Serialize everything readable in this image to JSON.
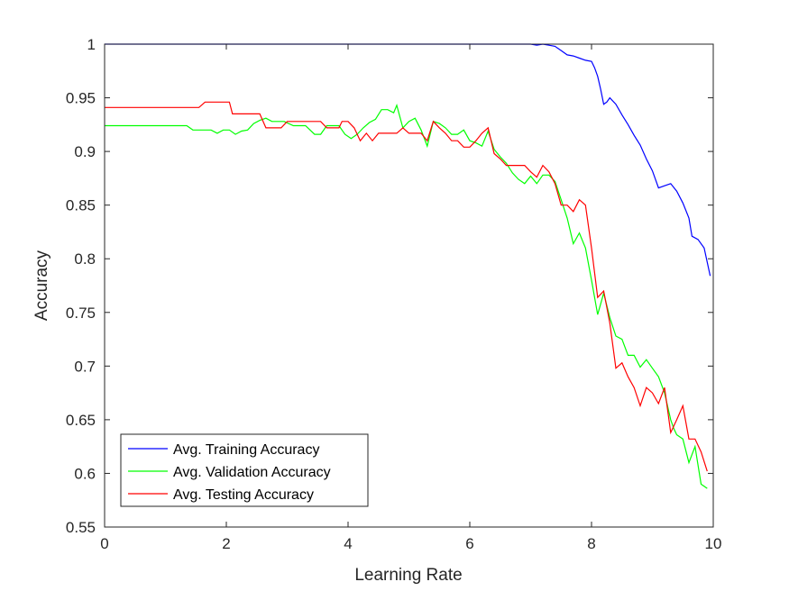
{
  "chart_data": {
    "type": "line",
    "xlabel": "Learning Rate",
    "ylabel": "Accuracy",
    "xlim": [
      0,
      10
    ],
    "ylim": [
      0.55,
      1.0
    ],
    "xticks": [
      "0",
      "2",
      "4",
      "6",
      "8",
      "10"
    ],
    "yticks": [
      "0.55",
      "0.6",
      "0.65",
      "0.7",
      "0.75",
      "0.8",
      "0.85",
      "0.9",
      "0.95",
      "1"
    ],
    "grid": false,
    "legend_position": "bottom-left",
    "series": [
      {
        "name": "Avg. Training Accuracy",
        "color": "#0000ff",
        "points": [
          [
            0,
            1
          ],
          [
            1,
            1
          ],
          [
            2,
            1
          ],
          [
            3,
            1
          ],
          [
            4,
            1
          ],
          [
            5,
            1
          ],
          [
            6,
            1
          ],
          [
            6.5,
            1
          ],
          [
            7,
            1
          ],
          [
            7.1,
            0.999
          ],
          [
            7.2,
            1
          ],
          [
            7.3,
            0.999
          ],
          [
            7.4,
            0.998
          ],
          [
            7.5,
            0.994
          ],
          [
            7.6,
            0.99
          ],
          [
            7.7,
            0.989
          ],
          [
            7.8,
            0.987
          ],
          [
            7.9,
            0.985
          ],
          [
            8.0,
            0.984
          ],
          [
            8.05,
            0.978
          ],
          [
            8.1,
            0.97
          ],
          [
            8.15,
            0.958
          ],
          [
            8.2,
            0.944
          ],
          [
            8.25,
            0.946
          ],
          [
            8.3,
            0.95
          ],
          [
            8.4,
            0.944
          ],
          [
            8.5,
            0.934
          ],
          [
            8.6,
            0.925
          ],
          [
            8.7,
            0.915
          ],
          [
            8.8,
            0.906
          ],
          [
            8.9,
            0.893
          ],
          [
            9.0,
            0.882
          ],
          [
            9.1,
            0.866
          ],
          [
            9.2,
            0.868
          ],
          [
            9.3,
            0.87
          ],
          [
            9.4,
            0.863
          ],
          [
            9.5,
            0.852
          ],
          [
            9.6,
            0.838
          ],
          [
            9.65,
            0.821
          ],
          [
            9.75,
            0.818
          ],
          [
            9.85,
            0.81
          ],
          [
            9.95,
            0.784
          ]
        ]
      },
      {
        "name": "Avg. Validation Accuracy",
        "color": "#00ff00",
        "points": [
          [
            0,
            0.924
          ],
          [
            0.5,
            0.924
          ],
          [
            1.0,
            0.924
          ],
          [
            1.35,
            0.924
          ],
          [
            1.45,
            0.92
          ],
          [
            1.6,
            0.92
          ],
          [
            1.75,
            0.92
          ],
          [
            1.85,
            0.917
          ],
          [
            1.95,
            0.92
          ],
          [
            2.05,
            0.92
          ],
          [
            2.15,
            0.916
          ],
          [
            2.25,
            0.919
          ],
          [
            2.35,
            0.92
          ],
          [
            2.45,
            0.926
          ],
          [
            2.55,
            0.929
          ],
          [
            2.65,
            0.931
          ],
          [
            2.75,
            0.928
          ],
          [
            2.85,
            0.928
          ],
          [
            2.95,
            0.928
          ],
          [
            3.1,
            0.924
          ],
          [
            3.2,
            0.924
          ],
          [
            3.3,
            0.924
          ],
          [
            3.45,
            0.916
          ],
          [
            3.55,
            0.916
          ],
          [
            3.65,
            0.924
          ],
          [
            3.75,
            0.924
          ],
          [
            3.85,
            0.924
          ],
          [
            3.95,
            0.916
          ],
          [
            4.05,
            0.912
          ],
          [
            4.15,
            0.916
          ],
          [
            4.25,
            0.922
          ],
          [
            4.35,
            0.927
          ],
          [
            4.45,
            0.93
          ],
          [
            4.55,
            0.939
          ],
          [
            4.65,
            0.939
          ],
          [
            4.75,
            0.936
          ],
          [
            4.8,
            0.943
          ],
          [
            4.9,
            0.922
          ],
          [
            5.0,
            0.928
          ],
          [
            5.1,
            0.931
          ],
          [
            5.2,
            0.92
          ],
          [
            5.3,
            0.905
          ],
          [
            5.4,
            0.928
          ],
          [
            5.5,
            0.926
          ],
          [
            5.6,
            0.922
          ],
          [
            5.7,
            0.916
          ],
          [
            5.8,
            0.916
          ],
          [
            5.9,
            0.92
          ],
          [
            6.0,
            0.91
          ],
          [
            6.1,
            0.908
          ],
          [
            6.2,
            0.905
          ],
          [
            6.3,
            0.919
          ],
          [
            6.4,
            0.902
          ],
          [
            6.5,
            0.895
          ],
          [
            6.6,
            0.889
          ],
          [
            6.7,
            0.88
          ],
          [
            6.8,
            0.874
          ],
          [
            6.9,
            0.87
          ],
          [
            7.0,
            0.877
          ],
          [
            7.1,
            0.87
          ],
          [
            7.2,
            0.878
          ],
          [
            7.3,
            0.878
          ],
          [
            7.4,
            0.872
          ],
          [
            7.5,
            0.855
          ],
          [
            7.6,
            0.838
          ],
          [
            7.7,
            0.814
          ],
          [
            7.8,
            0.824
          ],
          [
            7.9,
            0.81
          ],
          [
            8.0,
            0.78
          ],
          [
            8.1,
            0.748
          ],
          [
            8.2,
            0.768
          ],
          [
            8.3,
            0.745
          ],
          [
            8.4,
            0.728
          ],
          [
            8.5,
            0.725
          ],
          [
            8.6,
            0.71
          ],
          [
            8.7,
            0.71
          ],
          [
            8.8,
            0.699
          ],
          [
            8.9,
            0.706
          ],
          [
            9.0,
            0.698
          ],
          [
            9.1,
            0.69
          ],
          [
            9.2,
            0.675
          ],
          [
            9.3,
            0.65
          ],
          [
            9.35,
            0.642
          ],
          [
            9.4,
            0.636
          ],
          [
            9.5,
            0.632
          ],
          [
            9.6,
            0.61
          ],
          [
            9.7,
            0.625
          ],
          [
            9.8,
            0.59
          ],
          [
            9.9,
            0.586
          ]
        ]
      },
      {
        "name": "Avg. Testing Accuracy",
        "color": "#ff0000",
        "points": [
          [
            0,
            0.941
          ],
          [
            0.5,
            0.941
          ],
          [
            1.0,
            0.941
          ],
          [
            1.4,
            0.941
          ],
          [
            1.55,
            0.941
          ],
          [
            1.65,
            0.946
          ],
          [
            1.8,
            0.946
          ],
          [
            1.95,
            0.946
          ],
          [
            2.05,
            0.946
          ],
          [
            2.1,
            0.935
          ],
          [
            2.3,
            0.935
          ],
          [
            2.55,
            0.935
          ],
          [
            2.65,
            0.922
          ],
          [
            2.75,
            0.922
          ],
          [
            2.9,
            0.922
          ],
          [
            3.0,
            0.928
          ],
          [
            3.2,
            0.928
          ],
          [
            3.45,
            0.928
          ],
          [
            3.55,
            0.928
          ],
          [
            3.65,
            0.922
          ],
          [
            3.75,
            0.922
          ],
          [
            3.85,
            0.922
          ],
          [
            3.9,
            0.928
          ],
          [
            4.0,
            0.928
          ],
          [
            4.1,
            0.922
          ],
          [
            4.2,
            0.91
          ],
          [
            4.3,
            0.917
          ],
          [
            4.4,
            0.91
          ],
          [
            4.5,
            0.917
          ],
          [
            4.6,
            0.917
          ],
          [
            4.7,
            0.917
          ],
          [
            4.8,
            0.917
          ],
          [
            4.9,
            0.922
          ],
          [
            5.0,
            0.917
          ],
          [
            5.1,
            0.917
          ],
          [
            5.2,
            0.917
          ],
          [
            5.3,
            0.91
          ],
          [
            5.4,
            0.928
          ],
          [
            5.5,
            0.922
          ],
          [
            5.6,
            0.917
          ],
          [
            5.7,
            0.91
          ],
          [
            5.8,
            0.91
          ],
          [
            5.9,
            0.904
          ],
          [
            6.0,
            0.904
          ],
          [
            6.1,
            0.91
          ],
          [
            6.2,
            0.917
          ],
          [
            6.3,
            0.922
          ],
          [
            6.4,
            0.898
          ],
          [
            6.5,
            0.893
          ],
          [
            6.6,
            0.887
          ],
          [
            6.7,
            0.887
          ],
          [
            6.8,
            0.887
          ],
          [
            6.9,
            0.887
          ],
          [
            7.0,
            0.881
          ],
          [
            7.1,
            0.876
          ],
          [
            7.2,
            0.887
          ],
          [
            7.3,
            0.881
          ],
          [
            7.4,
            0.87
          ],
          [
            7.5,
            0.85
          ],
          [
            7.6,
            0.85
          ],
          [
            7.7,
            0.844
          ],
          [
            7.8,
            0.855
          ],
          [
            7.9,
            0.85
          ],
          [
            8.0,
            0.81
          ],
          [
            8.1,
            0.764
          ],
          [
            8.2,
            0.77
          ],
          [
            8.3,
            0.74
          ],
          [
            8.4,
            0.698
          ],
          [
            8.5,
            0.703
          ],
          [
            8.6,
            0.69
          ],
          [
            8.7,
            0.68
          ],
          [
            8.8,
            0.663
          ],
          [
            8.9,
            0.68
          ],
          [
            9.0,
            0.675
          ],
          [
            9.1,
            0.665
          ],
          [
            9.2,
            0.68
          ],
          [
            9.3,
            0.638
          ],
          [
            9.4,
            0.65
          ],
          [
            9.5,
            0.663
          ],
          [
            9.6,
            0.632
          ],
          [
            9.7,
            0.632
          ],
          [
            9.8,
            0.62
          ],
          [
            9.9,
            0.602
          ]
        ]
      }
    ]
  }
}
